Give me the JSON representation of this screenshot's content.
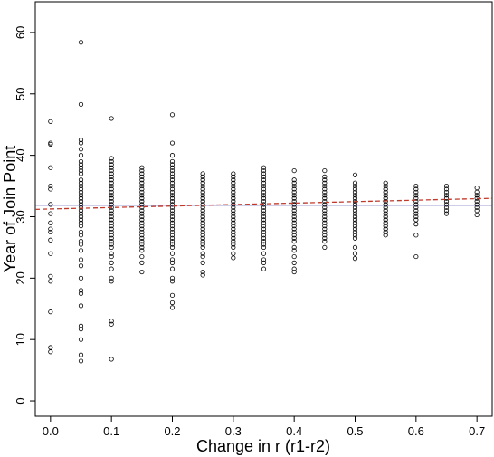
{
  "chart_data": {
    "type": "scatter",
    "xlabel": "Change in r (r1-r2)",
    "ylabel": "Year of Join Point",
    "xlim": [
      -0.025,
      0.725
    ],
    "ylim": [
      -2.5,
      65
    ],
    "x_ticks": [
      0.0,
      0.1,
      0.2,
      0.3,
      0.4,
      0.5,
      0.6,
      0.7
    ],
    "x_tick_labels": [
      "0.0",
      "0.1",
      "0.2",
      "0.3",
      "0.4",
      "0.5",
      "0.6",
      "0.7"
    ],
    "y_ticks": [
      0,
      10,
      20,
      30,
      40,
      50,
      60
    ],
    "y_tick_labels": [
      "0",
      "10",
      "20",
      "30",
      "40",
      "50",
      "60"
    ],
    "grid": false,
    "marker": "open-circle",
    "point_color": "#000000",
    "columns": [
      {
        "x": 0.0,
        "y": [
          8.0,
          8.7,
          14.5,
          19.5,
          20.3,
          24.0,
          26.2,
          27.5,
          28.0,
          29.0,
          30.5,
          32.0,
          34.5,
          35.0,
          38.0,
          41.8,
          42.0,
          45.5
        ]
      },
      {
        "x": 0.05,
        "y": [
          6.5,
          7.5,
          10.0,
          11.7,
          12.2,
          15.5,
          17.5,
          18.0,
          20.0,
          22.0,
          23.0,
          24.5,
          25.5,
          26.0,
          27.0,
          27.5,
          28.5,
          29.0,
          29.5,
          30.0,
          30.5,
          31.0,
          31.5,
          32.0,
          32.5,
          33.0,
          33.5,
          34.0,
          34.5,
          35.0,
          35.5,
          36.0,
          37.0,
          37.5,
          38.0,
          38.5,
          39.0,
          40.0,
          41.0,
          42.0,
          42.5,
          48.3,
          58.4
        ]
      },
      {
        "x": 0.1,
        "y": [
          6.8,
          12.5,
          13.0,
          19.5,
          20.0,
          21.5,
          22.5,
          23.5,
          24.0,
          25.0,
          25.5,
          26.0,
          26.5,
          27.0,
          27.5,
          28.0,
          28.5,
          29.0,
          29.5,
          30.0,
          30.5,
          31.0,
          31.5,
          32.0,
          32.5,
          33.0,
          33.5,
          34.0,
          34.5,
          35.0,
          35.5,
          36.0,
          36.5,
          37.0,
          37.5,
          38.0,
          38.5,
          39.0,
          39.5,
          46.0
        ]
      },
      {
        "x": 0.15,
        "y": [
          21.0,
          22.5,
          23.5,
          24.5,
          25.0,
          25.5,
          26.0,
          26.5,
          27.0,
          27.5,
          28.0,
          28.5,
          29.0,
          29.5,
          30.0,
          30.5,
          31.0,
          31.5,
          32.0,
          32.5,
          33.0,
          33.5,
          34.0,
          34.5,
          35.0,
          35.5,
          36.0,
          36.5,
          37.0,
          37.5,
          38.0
        ]
      },
      {
        "x": 0.2,
        "y": [
          15.2,
          16.0,
          17.2,
          19.5,
          20.0,
          21.5,
          22.5,
          23.0,
          24.0,
          25.0,
          25.5,
          26.0,
          26.5,
          27.0,
          27.5,
          28.0,
          28.5,
          29.0,
          29.5,
          30.0,
          30.5,
          31.0,
          31.5,
          32.0,
          32.5,
          33.0,
          33.5,
          34.0,
          34.5,
          35.0,
          35.5,
          36.0,
          36.5,
          37.0,
          37.5,
          38.0,
          38.5,
          39.0,
          40.0,
          42.0,
          46.6
        ]
      },
      {
        "x": 0.25,
        "y": [
          20.5,
          21.0,
          22.5,
          23.5,
          24.0,
          25.0,
          25.5,
          26.0,
          26.5,
          27.0,
          27.5,
          28.0,
          28.5,
          29.0,
          29.5,
          30.0,
          30.5,
          31.0,
          31.5,
          32.0,
          32.5,
          33.0,
          33.5,
          34.0,
          34.5,
          35.0,
          35.5,
          36.0,
          36.5,
          37.0
        ]
      },
      {
        "x": 0.3,
        "y": [
          23.3,
          24.0,
          25.0,
          25.5,
          26.0,
          26.5,
          27.0,
          27.5,
          28.0,
          28.5,
          29.0,
          29.5,
          30.0,
          30.5,
          31.0,
          31.5,
          32.0,
          32.5,
          33.0,
          33.5,
          34.0,
          34.5,
          35.0,
          35.5,
          36.0,
          36.5,
          37.0
        ]
      },
      {
        "x": 0.35,
        "y": [
          21.5,
          22.5,
          23.0,
          24.0,
          25.0,
          25.5,
          26.0,
          26.5,
          27.0,
          27.5,
          28.0,
          28.5,
          29.0,
          29.5,
          30.0,
          30.5,
          31.0,
          31.5,
          32.0,
          32.5,
          33.0,
          33.5,
          34.0,
          34.5,
          35.0,
          35.5,
          36.0,
          36.5,
          37.0,
          37.5,
          38.0
        ]
      },
      {
        "x": 0.4,
        "y": [
          21.0,
          21.5,
          22.5,
          23.5,
          24.5,
          25.0,
          26.0,
          26.5,
          27.0,
          27.5,
          28.0,
          28.5,
          29.0,
          29.5,
          30.0,
          30.5,
          31.0,
          31.5,
          32.0,
          32.5,
          33.0,
          33.5,
          34.0,
          34.5,
          35.0,
          35.5,
          36.0,
          37.5
        ]
      },
      {
        "x": 0.45,
        "y": [
          25.0,
          26.0,
          26.5,
          27.0,
          27.5,
          28.0,
          28.5,
          29.0,
          29.5,
          30.0,
          30.5,
          31.0,
          31.5,
          32.0,
          32.5,
          33.0,
          33.5,
          34.0,
          34.5,
          35.0,
          35.5,
          36.0,
          36.5,
          37.5
        ]
      },
      {
        "x": 0.5,
        "y": [
          23.2,
          24.0,
          25.0,
          26.5,
          27.0,
          27.5,
          28.0,
          28.5,
          29.0,
          29.5,
          30.0,
          30.5,
          31.0,
          31.5,
          32.0,
          32.5,
          33.0,
          33.5,
          34.0,
          34.5,
          35.0,
          35.5,
          36.8
        ]
      },
      {
        "x": 0.55,
        "y": [
          27.0,
          27.5,
          28.0,
          28.5,
          29.0,
          29.5,
          30.0,
          30.5,
          31.0,
          31.5,
          32.0,
          32.5,
          33.0,
          33.5,
          34.0,
          34.5,
          35.0,
          35.5
        ]
      },
      {
        "x": 0.6,
        "y": [
          23.5,
          27.0,
          28.8,
          29.5,
          30.0,
          30.5,
          31.0,
          31.5,
          32.0,
          32.5,
          33.0,
          33.5,
          34.0,
          34.5,
          35.0
        ]
      },
      {
        "x": 0.65,
        "y": [
          30.5,
          31.0,
          31.5,
          32.0,
          32.5,
          33.0,
          33.5,
          34.0,
          34.5,
          35.0
        ]
      },
      {
        "x": 0.7,
        "y": [
          30.3,
          31.0,
          31.5,
          32.0,
          32.5,
          33.0,
          33.5,
          34.0,
          34.7
        ]
      }
    ],
    "lines": [
      {
        "style": "solid",
        "color": "#3a3aa8",
        "x": [
          -0.025,
          0.725
        ],
        "y": [
          31.9,
          31.9
        ]
      },
      {
        "style": "dashed",
        "color": "#c0392b",
        "x": [
          -0.025,
          0.725
        ],
        "y": [
          31.2,
          33.0
        ]
      }
    ]
  }
}
